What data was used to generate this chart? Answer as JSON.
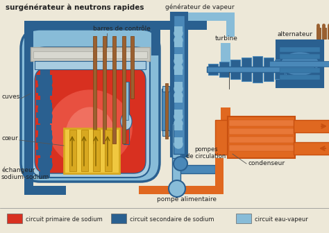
{
  "bg_color": "#ede8d8",
  "red": "#d83020",
  "red_glow": "#e84030",
  "dark_blue": "#2a6090",
  "mid_blue": "#4a88b8",
  "light_blue": "#88bcd8",
  "lighter_blue": "#a8cce0",
  "orange": "#e06820",
  "dark_orange": "#c85010",
  "yellow": "#f0c840",
  "yellow2": "#d8a820",
  "brown": "#9a6030",
  "gray_lid": "#a8a8a0",
  "gray_lid2": "#c8c8c0",
  "dark": "#303030",
  "title": "surgénérateur à neutrons rapides",
  "legend_items": [
    {
      "color": "#d83020",
      "label": "circuit primaire de sodium"
    },
    {
      "color": "#2a6090",
      "label": "circuit secondaire de sodium"
    },
    {
      "color": "#88bcd8",
      "label": "circuit eau-vapeur"
    }
  ],
  "labels": {
    "barres": "barres de contrôle",
    "cuves": "cuves",
    "coeur": "cœur",
    "echangeur": "échangeur\nsodium-sodium",
    "generateur": "générateur de vapeur",
    "turbine": "turbine",
    "alternateur": "alternateur",
    "condenseur": "condenseur",
    "pompes": "pompes\nde circulation",
    "pompe_alim": "pompe alimentaire"
  }
}
